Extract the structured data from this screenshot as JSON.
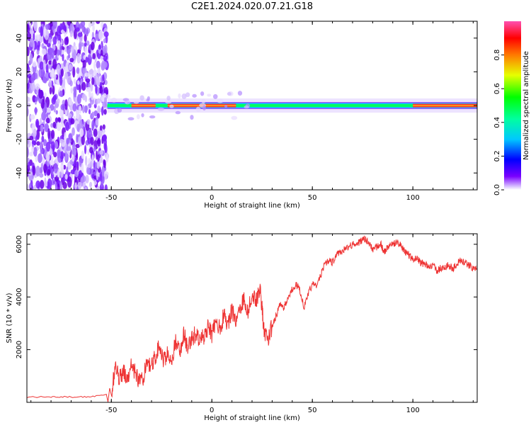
{
  "title": "C2E1.2024.020.07.21.G18",
  "chart_data": [
    {
      "type": "heatmap",
      "xlabel": "Height of straight line (km)",
      "ylabel": "Frequency (Hz)",
      "xlim": [
        -92,
        132
      ],
      "ylim": [
        -50,
        50
      ],
      "xticks": [
        -50,
        0,
        50,
        100
      ],
      "yticks": [
        -40,
        -20,
        0,
        20,
        40
      ],
      "colorbar": {
        "label": "Normalized spectral amplitude",
        "range": [
          0,
          1
        ],
        "ticks": [
          "0.0",
          "0.2",
          "0.4",
          "0.6",
          "0.8"
        ]
      },
      "regions": {
        "noise_x_range": [
          -92,
          -52
        ],
        "signal_line_frequency": 0,
        "signal_x_range": [
          -52,
          132
        ],
        "high_amplitude_x_ranges": [
          [
            -40,
            -28
          ],
          [
            -22,
            12
          ],
          [
            100,
            132
          ]
        ]
      }
    },
    {
      "type": "line",
      "xlabel": "Height of straight line (km)",
      "ylabel": "SNR (10 * v/v)",
      "xlim": [
        -92,
        132
      ],
      "ylim": [
        0,
        6400
      ],
      "xticks": [
        -50,
        0,
        50,
        100
      ],
      "yticks": [
        2000,
        4000,
        6000
      ],
      "series": [
        {
          "color": "#ee3333",
          "x": [
            -92,
            -80,
            -70,
            -60,
            -50,
            -48,
            -46,
            -44,
            -42,
            -40,
            -38,
            -36,
            -34,
            -32,
            -30,
            -28,
            -26,
            -24,
            -22,
            -20,
            -18,
            -16,
            -14,
            -12,
            -10,
            -8,
            -6,
            -4,
            -2,
            0,
            2,
            4,
            6,
            8,
            10,
            12,
            14,
            16,
            18,
            20,
            22,
            24,
            25,
            26,
            28,
            30,
            32,
            34,
            36,
            38,
            40,
            42,
            44,
            46,
            48,
            50,
            52,
            54,
            56,
            58,
            60,
            62,
            64,
            66,
            68,
            70,
            72,
            74,
            76,
            78,
            80,
            82,
            84,
            86,
            88,
            90,
            92,
            94,
            96,
            98,
            100,
            102,
            104,
            106,
            108,
            110,
            112,
            114,
            116,
            118,
            120,
            122,
            124,
            126,
            128,
            130,
            132
          ],
          "y": [
            200,
            200,
            200,
            220,
            300,
            1300,
            900,
            1200,
            700,
            1500,
            1100,
            800,
            1000,
            1500,
            1300,
            1800,
            2100,
            1600,
            1900,
            1500,
            2300,
            1900,
            2600,
            2100,
            2400,
            2600,
            2300,
            2500,
            2900,
            2600,
            3100,
            2800,
            3300,
            3000,
            3500,
            3100,
            3600,
            3900,
            3500,
            4100,
            3900,
            4300,
            3600,
            2600,
            2400,
            2900,
            3300,
            3700,
            3600,
            4000,
            4300,
            4500,
            4200,
            3600,
            4100,
            4500,
            4400,
            4800,
            5200,
            5400,
            5300,
            5600,
            5700,
            5800,
            5900,
            6000,
            6050,
            6100,
            6200,
            6100,
            5800,
            5900,
            6000,
            5700,
            5900,
            6000,
            6050,
            5950,
            5700,
            5600,
            5400,
            5500,
            5300,
            5250,
            5100,
            5200,
            5000,
            5100,
            5150,
            5200,
            5050,
            5300,
            5400,
            5300,
            5200,
            5100,
            5000
          ]
        }
      ]
    }
  ]
}
